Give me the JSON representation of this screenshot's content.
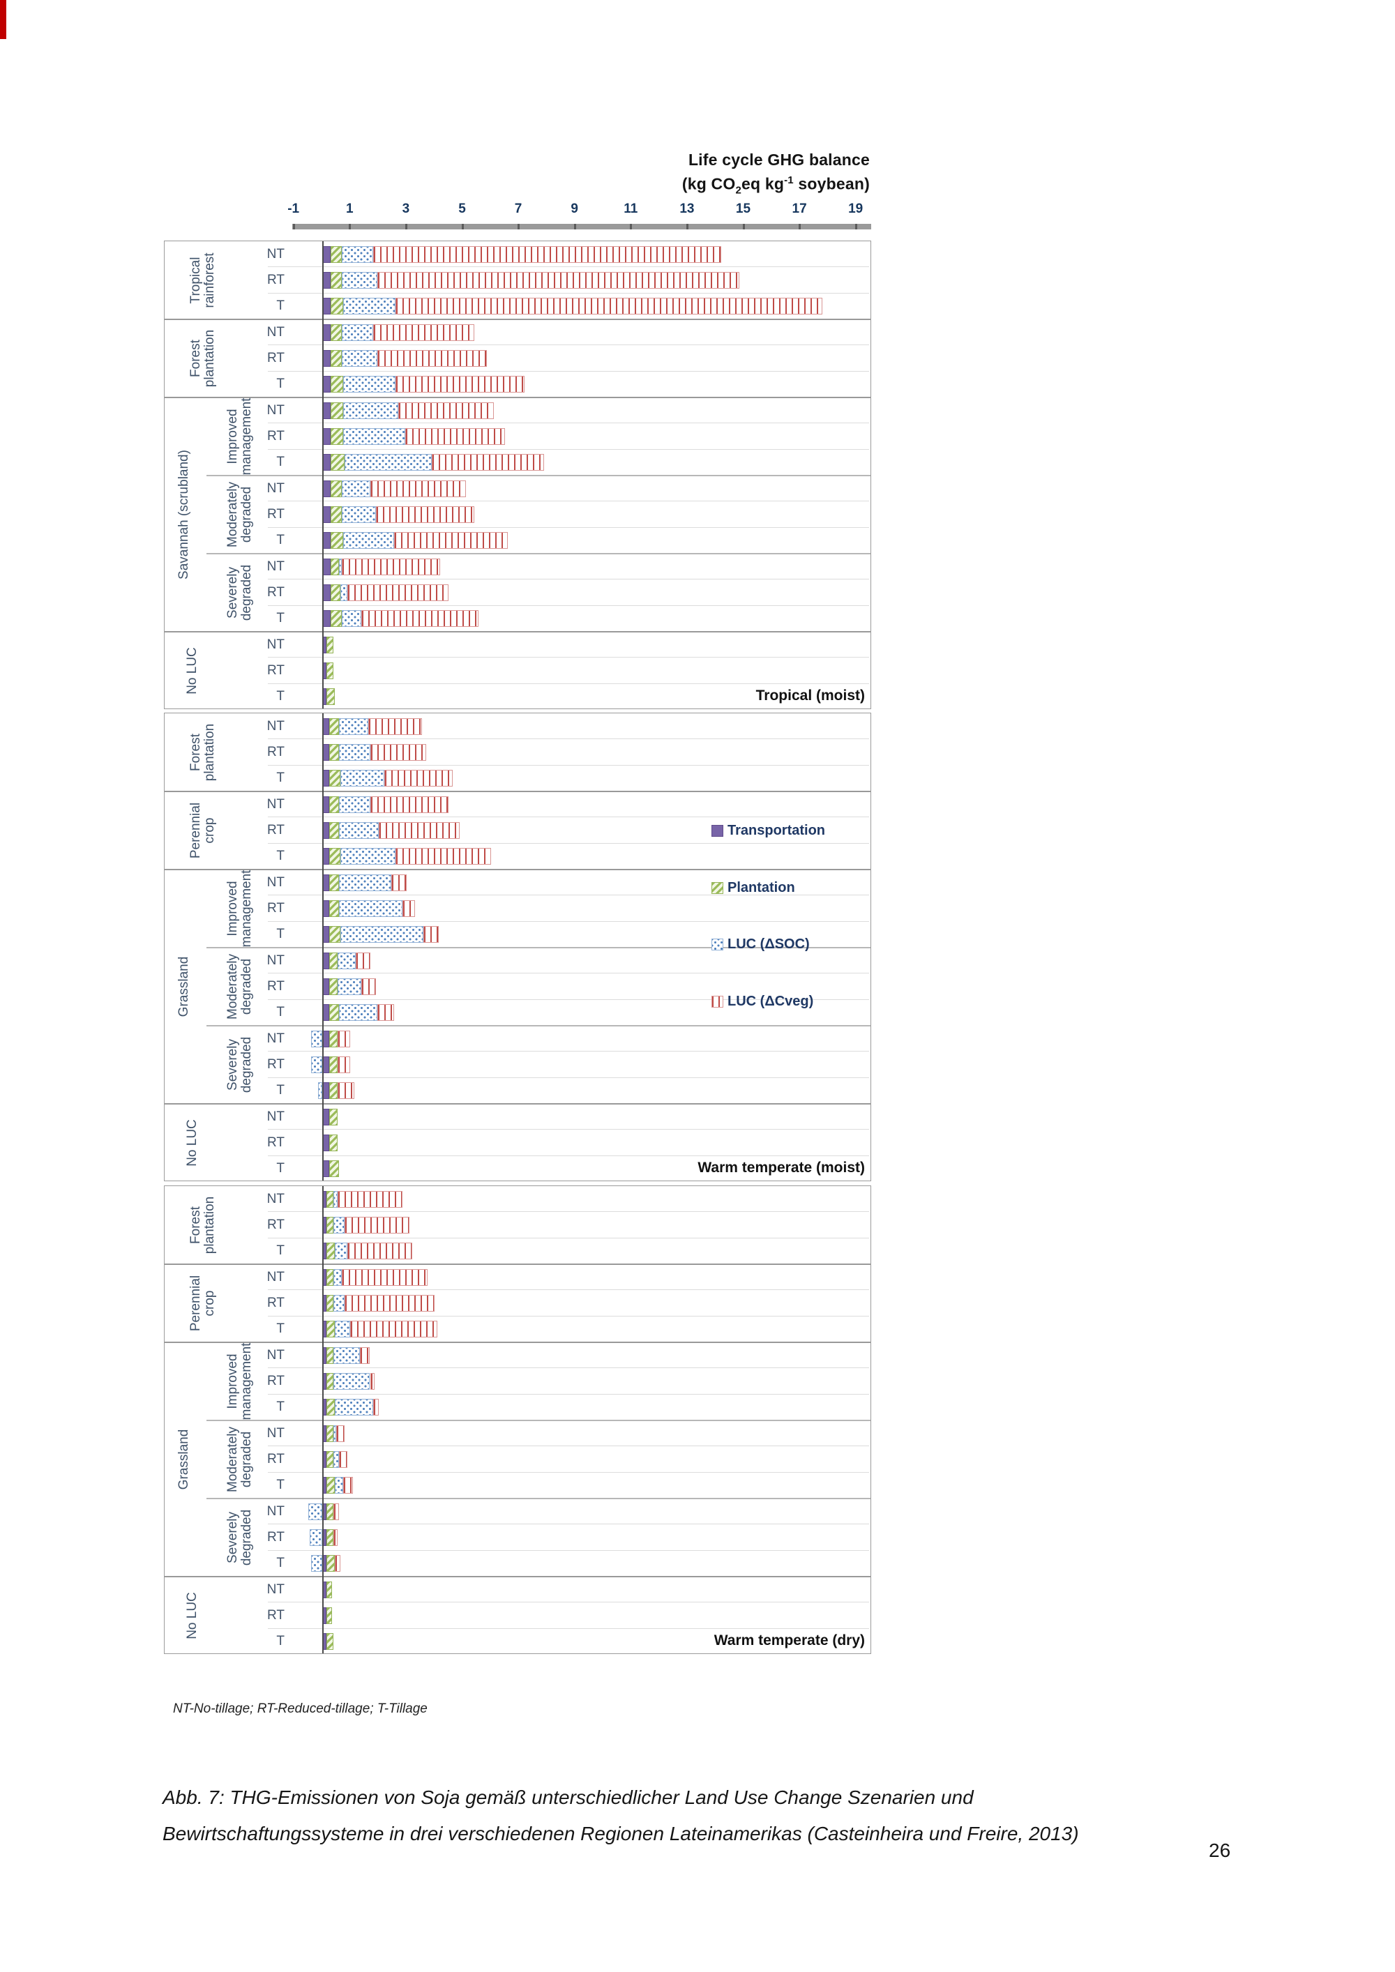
{
  "page": {
    "number": "26"
  },
  "figure": {
    "title_line1": "Life cycle GHG balance",
    "title2_pre": "(kg CO",
    "title2_sub": "2",
    "title2_mid": "eq kg",
    "title2_sup": "-1",
    "title2_post": " soybean)",
    "footnote": "NT-No-tillage; RT-Reduced-tillage; T-Tillage"
  },
  "caption": {
    "line1": "Abb. 7: THG-Emissionen von Soja gemäß unterschiedlicher Land Use Change Szenarien und",
    "line2": "Bewirtschaftungssysteme in drei verschiedenen Regionen Lateinamerikas (Casteinheira und Freire, 2013)"
  },
  "chart_data": {
    "type": "bar",
    "orientation": "horizontal",
    "stacked": true,
    "title": "Life cycle GHG balance (kg CO2eq kg-1 soybean)",
    "xlabel": "kg CO2eq kg-1 soybean",
    "axis": {
      "ticks": [
        -1,
        1,
        3,
        5,
        7,
        9,
        11,
        13,
        15,
        17,
        19
      ],
      "min": -1.5,
      "max": 19.5,
      "grid": false
    },
    "series_names": [
      "Transportation",
      "Plantation",
      "LUC (ΔSOC)",
      "LUC (ΔCveg)"
    ],
    "legend": [
      {
        "label": "Transportation",
        "pattern": "solid",
        "color": "#7864a8"
      },
      {
        "label": "Plantation",
        "pattern": "diagonal-stripes",
        "color": "#9bbb59"
      },
      {
        "label": "LUC (ΔSOC)",
        "pattern": "dots",
        "color": "#4f81bd"
      },
      {
        "label": "LUC  (ΔCveg)",
        "pattern": "vertical-stripes",
        "color": "#c0504d"
      }
    ],
    "tillage_key": [
      "NT",
      "RT",
      "T"
    ],
    "panels": [
      {
        "label": "Tropical (moist)",
        "groups": [
          {
            "label": "Tropical\nrainforest",
            "subgroups": [
              {
                "label": "",
                "rows": [
                  {
                    "tillage": "NT",
                    "values": [
                      0.3,
                      0.4,
                      1.1,
                      12.4
                    ]
                  },
                  {
                    "tillage": "RT",
                    "values": [
                      0.3,
                      0.4,
                      1.25,
                      12.9
                    ]
                  },
                  {
                    "tillage": "T",
                    "values": [
                      0.3,
                      0.45,
                      1.85,
                      15.2
                    ]
                  }
                ]
              }
            ]
          },
          {
            "label": "Forest\nplantation",
            "subgroups": [
              {
                "label": "",
                "rows": [
                  {
                    "tillage": "NT",
                    "values": [
                      0.3,
                      0.4,
                      1.1,
                      3.6
                    ]
                  },
                  {
                    "tillage": "RT",
                    "values": [
                      0.3,
                      0.4,
                      1.25,
                      3.9
                    ]
                  },
                  {
                    "tillage": "T",
                    "values": [
                      0.3,
                      0.45,
                      1.85,
                      4.6
                    ]
                  }
                ]
              }
            ]
          },
          {
            "label": "Savannah (scrubland)",
            "subgroups": [
              {
                "label": "Improved\nmanagement",
                "rows": [
                  {
                    "tillage": "NT",
                    "values": [
                      0.3,
                      0.45,
                      1.95,
                      3.4
                    ]
                  },
                  {
                    "tillage": "RT",
                    "values": [
                      0.3,
                      0.45,
                      2.2,
                      3.55
                    ]
                  },
                  {
                    "tillage": "T",
                    "values": [
                      0.3,
                      0.5,
                      3.1,
                      4.0
                    ]
                  }
                ]
              },
              {
                "label": "Moderately\ndegraded",
                "rows": [
                  {
                    "tillage": "NT",
                    "values": [
                      0.3,
                      0.4,
                      1.0,
                      3.4
                    ]
                  },
                  {
                    "tillage": "RT",
                    "values": [
                      0.3,
                      0.4,
                      1.2,
                      3.5
                    ]
                  },
                  {
                    "tillage": "T",
                    "values": [
                      0.3,
                      0.45,
                      1.8,
                      4.05
                    ]
                  }
                ]
              },
              {
                "label": "Severely\ndegraded",
                "rows": [
                  {
                    "tillage": "NT",
                    "values": [
                      0.3,
                      0.3,
                      0.1,
                      3.5
                    ]
                  },
                  {
                    "tillage": "RT",
                    "values": [
                      0.3,
                      0.35,
                      0.25,
                      3.6
                    ]
                  },
                  {
                    "tillage": "T",
                    "values": [
                      0.3,
                      0.4,
                      0.7,
                      4.15
                    ]
                  }
                ]
              }
            ]
          },
          {
            "label": "No LUC",
            "subgroups": [
              {
                "label": "",
                "rows": [
                  {
                    "tillage": "NT",
                    "values": [
                      0.15,
                      0.25,
                      0,
                      0
                    ]
                  },
                  {
                    "tillage": "RT",
                    "values": [
                      0.15,
                      0.25,
                      0,
                      0
                    ]
                  },
                  {
                    "tillage": "T",
                    "values": [
                      0.15,
                      0.3,
                      0,
                      0
                    ]
                  }
                ]
              }
            ]
          }
        ]
      },
      {
        "label": "Warm temperate (moist)",
        "groups": [
          {
            "label": "Forest\nplantation",
            "subgroups": [
              {
                "label": "",
                "rows": [
                  {
                    "tillage": "NT",
                    "values": [
                      0.25,
                      0.35,
                      1.05,
                      1.9
                    ]
                  },
                  {
                    "tillage": "RT",
                    "values": [
                      0.25,
                      0.35,
                      1.1,
                      2.0
                    ]
                  },
                  {
                    "tillage": "T",
                    "values": [
                      0.25,
                      0.4,
                      1.55,
                      2.45
                    ]
                  }
                ]
              }
            ]
          },
          {
            "label": "Perennial\ncrop",
            "subgroups": [
              {
                "label": "",
                "rows": [
                  {
                    "tillage": "NT",
                    "values": [
                      0.25,
                      0.35,
                      1.1,
                      2.8
                    ]
                  },
                  {
                    "tillage": "RT",
                    "values": [
                      0.25,
                      0.35,
                      1.4,
                      2.9
                    ]
                  },
                  {
                    "tillage": "T",
                    "values": [
                      0.25,
                      0.4,
                      1.95,
                      3.4
                    ]
                  }
                ]
              }
            ]
          },
          {
            "label": "Grassland",
            "subgroups": [
              {
                "label": "Improved\nmanagement",
                "rows": [
                  {
                    "tillage": "NT",
                    "values": [
                      0.25,
                      0.35,
                      1.85,
                      0.55
                    ]
                  },
                  {
                    "tillage": "RT",
                    "values": [
                      0.25,
                      0.35,
                      2.25,
                      0.45
                    ]
                  },
                  {
                    "tillage": "T",
                    "values": [
                      0.25,
                      0.4,
                      2.95,
                      0.55
                    ]
                  }
                ]
              },
              {
                "label": "Moderately\ndegraded",
                "rows": [
                  {
                    "tillage": "NT",
                    "values": [
                      0.25,
                      0.3,
                      0.65,
                      0.5
                    ]
                  },
                  {
                    "tillage": "RT",
                    "values": [
                      0.25,
                      0.3,
                      0.85,
                      0.5
                    ]
                  },
                  {
                    "tillage": "T",
                    "values": [
                      0.25,
                      0.35,
                      1.35,
                      0.6
                    ]
                  }
                ]
              },
              {
                "label": "Severely\ndegraded",
                "rows": [
                  {
                    "tillage": "NT",
                    "values": [
                      0.25,
                      0.3,
                      -0.4,
                      0.45
                    ]
                  },
                  {
                    "tillage": "RT",
                    "values": [
                      0.25,
                      0.3,
                      -0.4,
                      0.45
                    ]
                  },
                  {
                    "tillage": "T",
                    "values": [
                      0.25,
                      0.3,
                      -0.15,
                      0.6
                    ]
                  }
                ]
              }
            ]
          },
          {
            "label": "No LUC",
            "subgroups": [
              {
                "label": "",
                "rows": [
                  {
                    "tillage": "NT",
                    "values": [
                      0.25,
                      0.3,
                      0,
                      0
                    ]
                  },
                  {
                    "tillage": "RT",
                    "values": [
                      0.25,
                      0.3,
                      0,
                      0
                    ]
                  },
                  {
                    "tillage": "T",
                    "values": [
                      0.25,
                      0.35,
                      0,
                      0
                    ]
                  }
                ]
              }
            ]
          }
        ]
      },
      {
        "label": "Warm temperate (dry)",
        "groups": [
          {
            "label": "Forest\nplantation",
            "subgroups": [
              {
                "label": "",
                "rows": [
                  {
                    "tillage": "NT",
                    "values": [
                      0.15,
                      0.25,
                      0.15,
                      2.3
                    ]
                  },
                  {
                    "tillage": "RT",
                    "values": [
                      0.15,
                      0.25,
                      0.4,
                      2.3
                    ]
                  },
                  {
                    "tillage": "T",
                    "values": [
                      0.15,
                      0.3,
                      0.45,
                      2.3
                    ]
                  }
                ]
              }
            ]
          },
          {
            "label": "Perennial\ncrop",
            "subgroups": [
              {
                "label": "",
                "rows": [
                  {
                    "tillage": "NT",
                    "values": [
                      0.15,
                      0.25,
                      0.3,
                      3.05
                    ]
                  },
                  {
                    "tillage": "RT",
                    "values": [
                      0.15,
                      0.25,
                      0.4,
                      3.2
                    ]
                  },
                  {
                    "tillage": "T",
                    "values": [
                      0.15,
                      0.3,
                      0.55,
                      3.1
                    ]
                  }
                ]
              }
            ]
          },
          {
            "label": "Grassland",
            "subgroups": [
              {
                "label": "Improved\nmanagement",
                "rows": [
                  {
                    "tillage": "NT",
                    "values": [
                      0.15,
                      0.25,
                      0.95,
                      0.35
                    ]
                  },
                  {
                    "tillage": "RT",
                    "values": [
                      0.15,
                      0.25,
                      1.3,
                      0.15
                    ]
                  },
                  {
                    "tillage": "T",
                    "values": [
                      0.15,
                      0.3,
                      1.35,
                      0.2
                    ]
                  }
                ]
              },
              {
                "label": "Moderately\ndegraded",
                "rows": [
                  {
                    "tillage": "NT",
                    "values": [
                      0.15,
                      0.25,
                      0.1,
                      0.3
                    ]
                  },
                  {
                    "tillage": "RT",
                    "values": [
                      0.15,
                      0.25,
                      0.2,
                      0.3
                    ]
                  },
                  {
                    "tillage": "T",
                    "values": [
                      0.15,
                      0.3,
                      0.3,
                      0.35
                    ]
                  }
                ]
              },
              {
                "label": "Severely\ndegraded",
                "rows": [
                  {
                    "tillage": "NT",
                    "values": [
                      0.15,
                      0.25,
                      -0.5,
                      0.2
                    ]
                  },
                  {
                    "tillage": "RT",
                    "values": [
                      0.15,
                      0.25,
                      -0.45,
                      0.15
                    ]
                  },
                  {
                    "tillage": "T",
                    "values": [
                      0.15,
                      0.3,
                      -0.4,
                      0.2
                    ]
                  }
                ]
              }
            ]
          },
          {
            "label": "No LUC",
            "subgroups": [
              {
                "label": "",
                "rows": [
                  {
                    "tillage": "NT",
                    "values": [
                      0.15,
                      0.2,
                      0,
                      0
                    ]
                  },
                  {
                    "tillage": "RT",
                    "values": [
                      0.15,
                      0.2,
                      0,
                      0
                    ]
                  },
                  {
                    "tillage": "T",
                    "values": [
                      0.15,
                      0.25,
                      0,
                      0
                    ]
                  }
                ]
              }
            ]
          }
        ]
      }
    ]
  }
}
